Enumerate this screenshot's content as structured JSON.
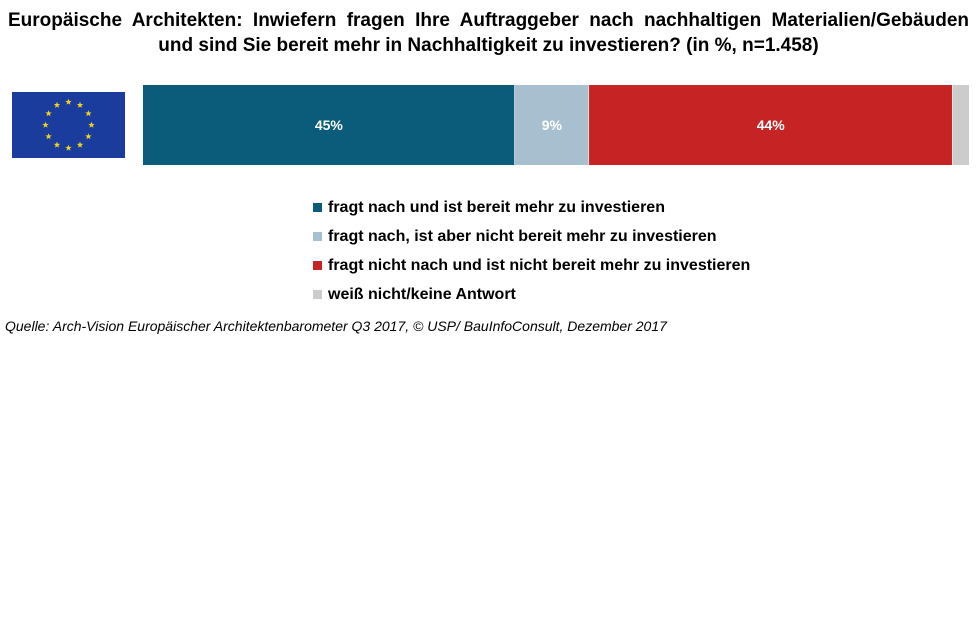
{
  "title": {
    "line1": "Europäische Architekten: Inwiefern fragen Ihre Auftraggeber nach nachhaltigen Materialien/Gebäuden",
    "line2": "und sind Sie bereit mehr in Nachhaltigkeit zu investieren? (in %, n=1.458)"
  },
  "flag": {
    "icon": "eu-flag-icon",
    "background": "#1a3c9c",
    "star_color": "#f2d21e"
  },
  "chart_data": {
    "type": "bar",
    "orientation": "horizontal-stacked-100",
    "title": "Europäische Architekten: Inwiefern fragen Ihre Auftraggeber nach nachhaltigen Materialien/Gebäuden und sind Sie bereit mehr in Nachhaltigkeit zu investieren? (in %, n=1.458)",
    "categories": [
      "EU"
    ],
    "series": [
      {
        "name": "fragt nach und ist bereit mehr zu investieren",
        "values": [
          45
        ],
        "label": "45%",
        "color": "#0b5c7a"
      },
      {
        "name": "fragt nach, ist aber nicht bereit mehr zu investieren",
        "values": [
          9
        ],
        "label": "9%",
        "color": "#a8bfcf"
      },
      {
        "name": "fragt nicht nach und ist nicht bereit mehr zu investieren",
        "values": [
          44
        ],
        "label": "44%",
        "color": "#c62424"
      },
      {
        "name": "weiß nicht/keine Antwort",
        "values": [
          2
        ],
        "label": "",
        "color": "#cccccc"
      }
    ],
    "legend_placement": "bottom",
    "grid": false
  },
  "source": "Quelle: Arch-Vision Europäischer Architektenbarometer Q3 2017, © USP/ BauInfoConsult, Dezember 2017"
}
